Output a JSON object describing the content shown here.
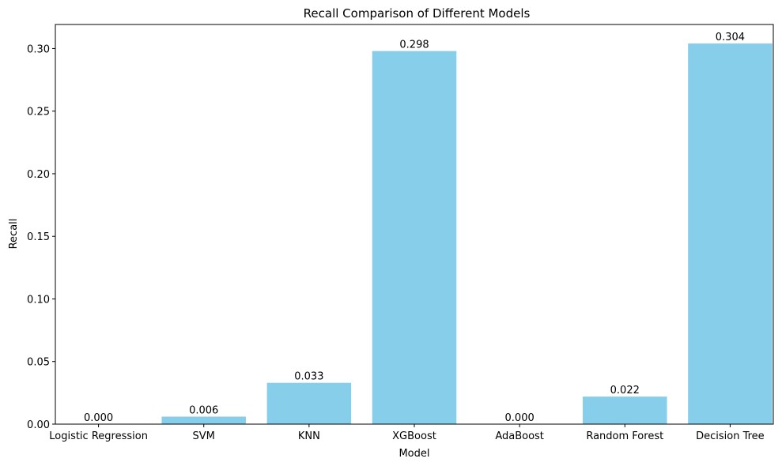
{
  "chart_data": {
    "type": "bar",
    "title": "Recall Comparison of Different Models",
    "xlabel": "Model",
    "ylabel": "Recall",
    "categories": [
      "Logistic Regression",
      "SVM",
      "KNN",
      "XGBoost",
      "AdaBoost",
      "Random Forest",
      "Decision Tree"
    ],
    "values": [
      0.0,
      0.006,
      0.033,
      0.298,
      0.0,
      0.022,
      0.304
    ],
    "data_labels": [
      "0.000",
      "0.006",
      "0.033",
      "0.298",
      "0.000",
      "0.022",
      "0.304"
    ],
    "yticks": [
      0.0,
      0.05,
      0.1,
      0.15,
      0.2,
      0.25,
      0.3
    ],
    "ytick_labels": [
      "0.00",
      "0.05",
      "0.10",
      "0.15",
      "0.20",
      "0.25",
      "0.30"
    ],
    "ylim": [
      0,
      0.3192
    ],
    "grid": false,
    "legend": "none",
    "bar_color": "#87ceeb"
  }
}
